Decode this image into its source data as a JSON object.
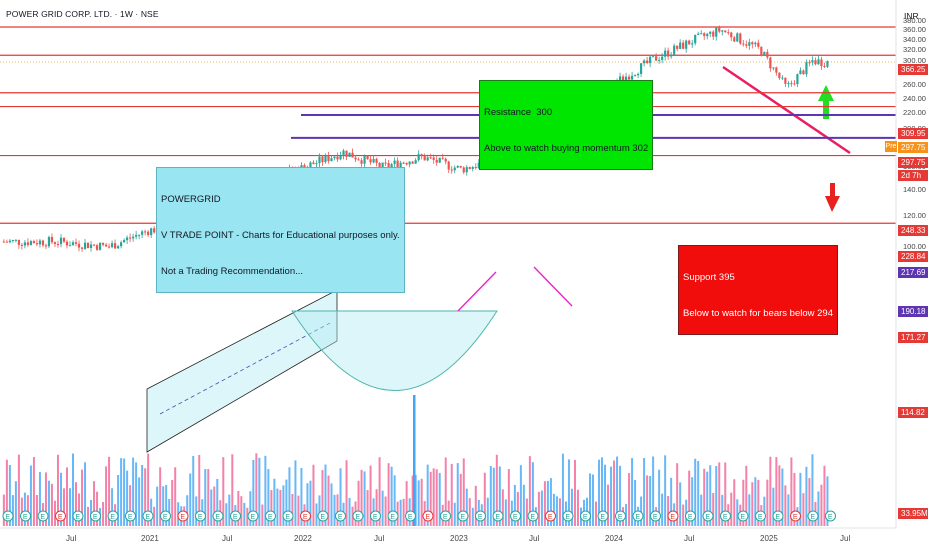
{
  "header": {
    "title": "POWER GRID CORP. LTD. · 1W · NSE",
    "currency": "INR"
  },
  "annotations": {
    "resistance": [
      "Resistance  300",
      "Above to watch buying momentum 302"
    ],
    "support": [
      "Support 395",
      "Below to watch for bears below 294"
    ],
    "note": [
      "POWERGRID",
      "V TRADE POINT - Charts for Educational purposes only.",
      "Not a Trading Recommendation..."
    ]
  },
  "colors": {
    "up_candle": "#26a69a",
    "down_candle": "#ef5350",
    "up_volume": "#42a5f5",
    "down_volume": "#f06292",
    "hline": "#e53935",
    "purple": "#5e35b1",
    "magenta": "#e91ec8",
    "trend": "#e91e63",
    "channel": "#b2ebf2"
  },
  "chart_data": {
    "type": "candlestick",
    "title": "POWER GRID CORP. LTD. · 1W · NSE",
    "ylabel": "INR",
    "y_scale": "log",
    "ylim": [
      85,
      400
    ],
    "y_ticks": [
      100,
      120,
      140,
      160,
      180,
      200,
      220,
      240,
      260,
      280,
      300,
      320,
      340,
      360,
      380
    ],
    "x_ticks": [
      "Jul",
      "2021",
      "Jul",
      "2022",
      "Jul",
      "2023",
      "Jul",
      "2024",
      "Jul",
      "2025",
      "Jul"
    ],
    "price_levels": [
      {
        "label": "366.25",
        "color": "#e53935"
      },
      {
        "label": "309.95",
        "color": "#e53935"
      },
      {
        "label": "297.75",
        "color": "#f7931a",
        "prefix": "Pre"
      },
      {
        "label": "297.75",
        "color": "#e53935"
      },
      {
        "label": "2d 7h",
        "color": "#e53935"
      },
      {
        "label": "248.33",
        "color": "#e53935"
      },
      {
        "label": "228.84",
        "color": "#e53935"
      },
      {
        "label": "217.69",
        "color": "#5e35b1"
      },
      {
        "label": "190.18",
        "color": "#5e35b1"
      },
      {
        "label": "171.27",
        "color": "#e53935"
      },
      {
        "label": "114.82",
        "color": "#e53935"
      },
      {
        "label": "33.95M",
        "color": "#e53935"
      }
    ],
    "horizontal_lines": [
      366.25,
      309.95,
      248.33,
      228.84,
      171.27,
      114.82
    ],
    "purple_lines": [
      217.69,
      190.18
    ],
    "price_path": [
      [
        "2020-06",
        103
      ],
      [
        "2020-10",
        100
      ],
      [
        "2021-01",
        110
      ],
      [
        "2021-04",
        115
      ],
      [
        "2021-07",
        128
      ],
      [
        "2021-10",
        150
      ],
      [
        "2022-01",
        160
      ],
      [
        "2022-04",
        175
      ],
      [
        "2022-07",
        160
      ],
      [
        "2022-10",
        170
      ],
      [
        "2023-01",
        158
      ],
      [
        "2023-04",
        168
      ],
      [
        "2023-07",
        182
      ],
      [
        "2023-10",
        205
      ],
      [
        "2024-01",
        265
      ],
      [
        "2024-04",
        305
      ],
      [
        "2024-07",
        340
      ],
      [
        "2024-09",
        360
      ],
      [
        "2024-12",
        320
      ],
      [
        "2025-02",
        255
      ],
      [
        "2025-04",
        300
      ],
      [
        "2025-05",
        297.75
      ]
    ],
    "volume_unit": "M",
    "last_volume": 33.95
  }
}
